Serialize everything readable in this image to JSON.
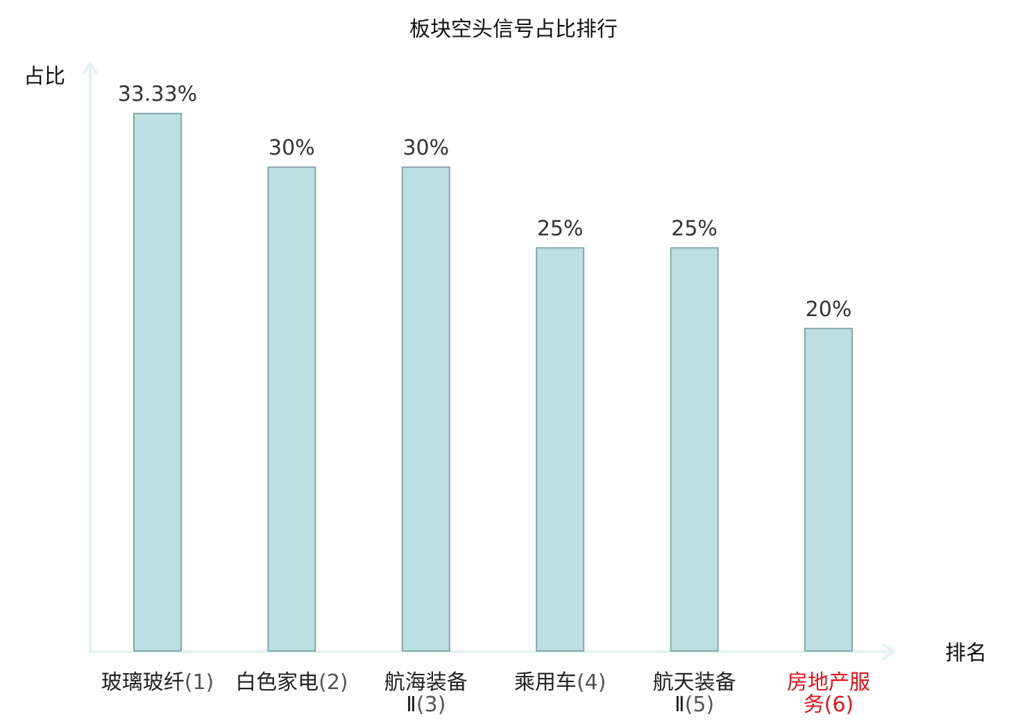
{
  "chart_data": {
    "type": "bar",
    "title": "板块空头信号占比排行",
    "ylabel": "占比",
    "xlabel": "排名",
    "ylim": [
      0,
      36.5
    ],
    "categories": [
      {
        "name_lines": [
          "玻璃玻纤"
        ],
        "rank": "(1)",
        "highlight": false
      },
      {
        "name_lines": [
          "白色家电"
        ],
        "rank": "(2)",
        "highlight": false
      },
      {
        "name_lines": [
          "航海装备",
          "Ⅱ"
        ],
        "rank": "(3)",
        "highlight": false
      },
      {
        "name_lines": [
          "乘用车"
        ],
        "rank": "(4)",
        "highlight": false
      },
      {
        "name_lines": [
          "航天装备",
          "Ⅱ"
        ],
        "rank": "(5)",
        "highlight": false
      },
      {
        "name_lines": [
          "房地产服",
          "务"
        ],
        "rank": "(6)",
        "highlight": true
      }
    ],
    "values": [
      33.33,
      30,
      30,
      25,
      25,
      20
    ],
    "value_labels": [
      "33.33%",
      "30%",
      "30%",
      "25%",
      "25%",
      "20%"
    ],
    "grid": false,
    "legend": "none",
    "colors": {
      "bar_fill": "#bce0e2",
      "bar_stroke": "#84a7ab",
      "axis": "#e3f3f1",
      "highlight_text": "#e0151b"
    }
  }
}
